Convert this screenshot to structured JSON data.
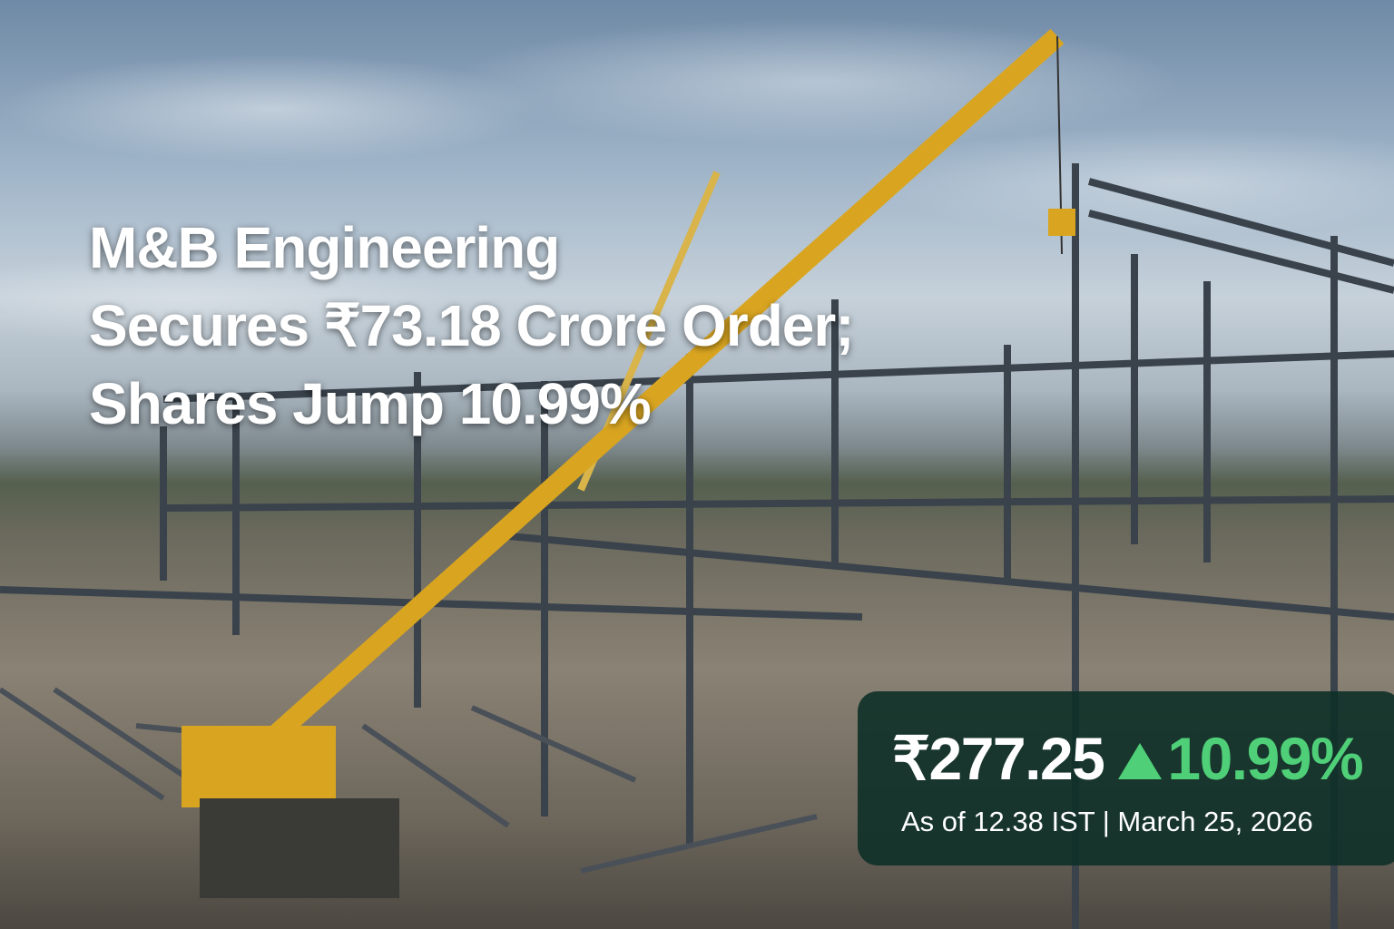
{
  "headline": {
    "lines": [
      "M&B Engineering",
      "Secures ₹73.18 Crore Order;",
      "Shares Jump 10.99%"
    ]
  },
  "stock": {
    "price": "₹277.25",
    "change": "10.99%",
    "change_icon": "triangle-up-icon",
    "as_of": "As of 12.38 IST | March 25, 2026",
    "colors": {
      "up": "#4fcf78",
      "box": "#0e3028",
      "text": "#ffffff"
    }
  }
}
